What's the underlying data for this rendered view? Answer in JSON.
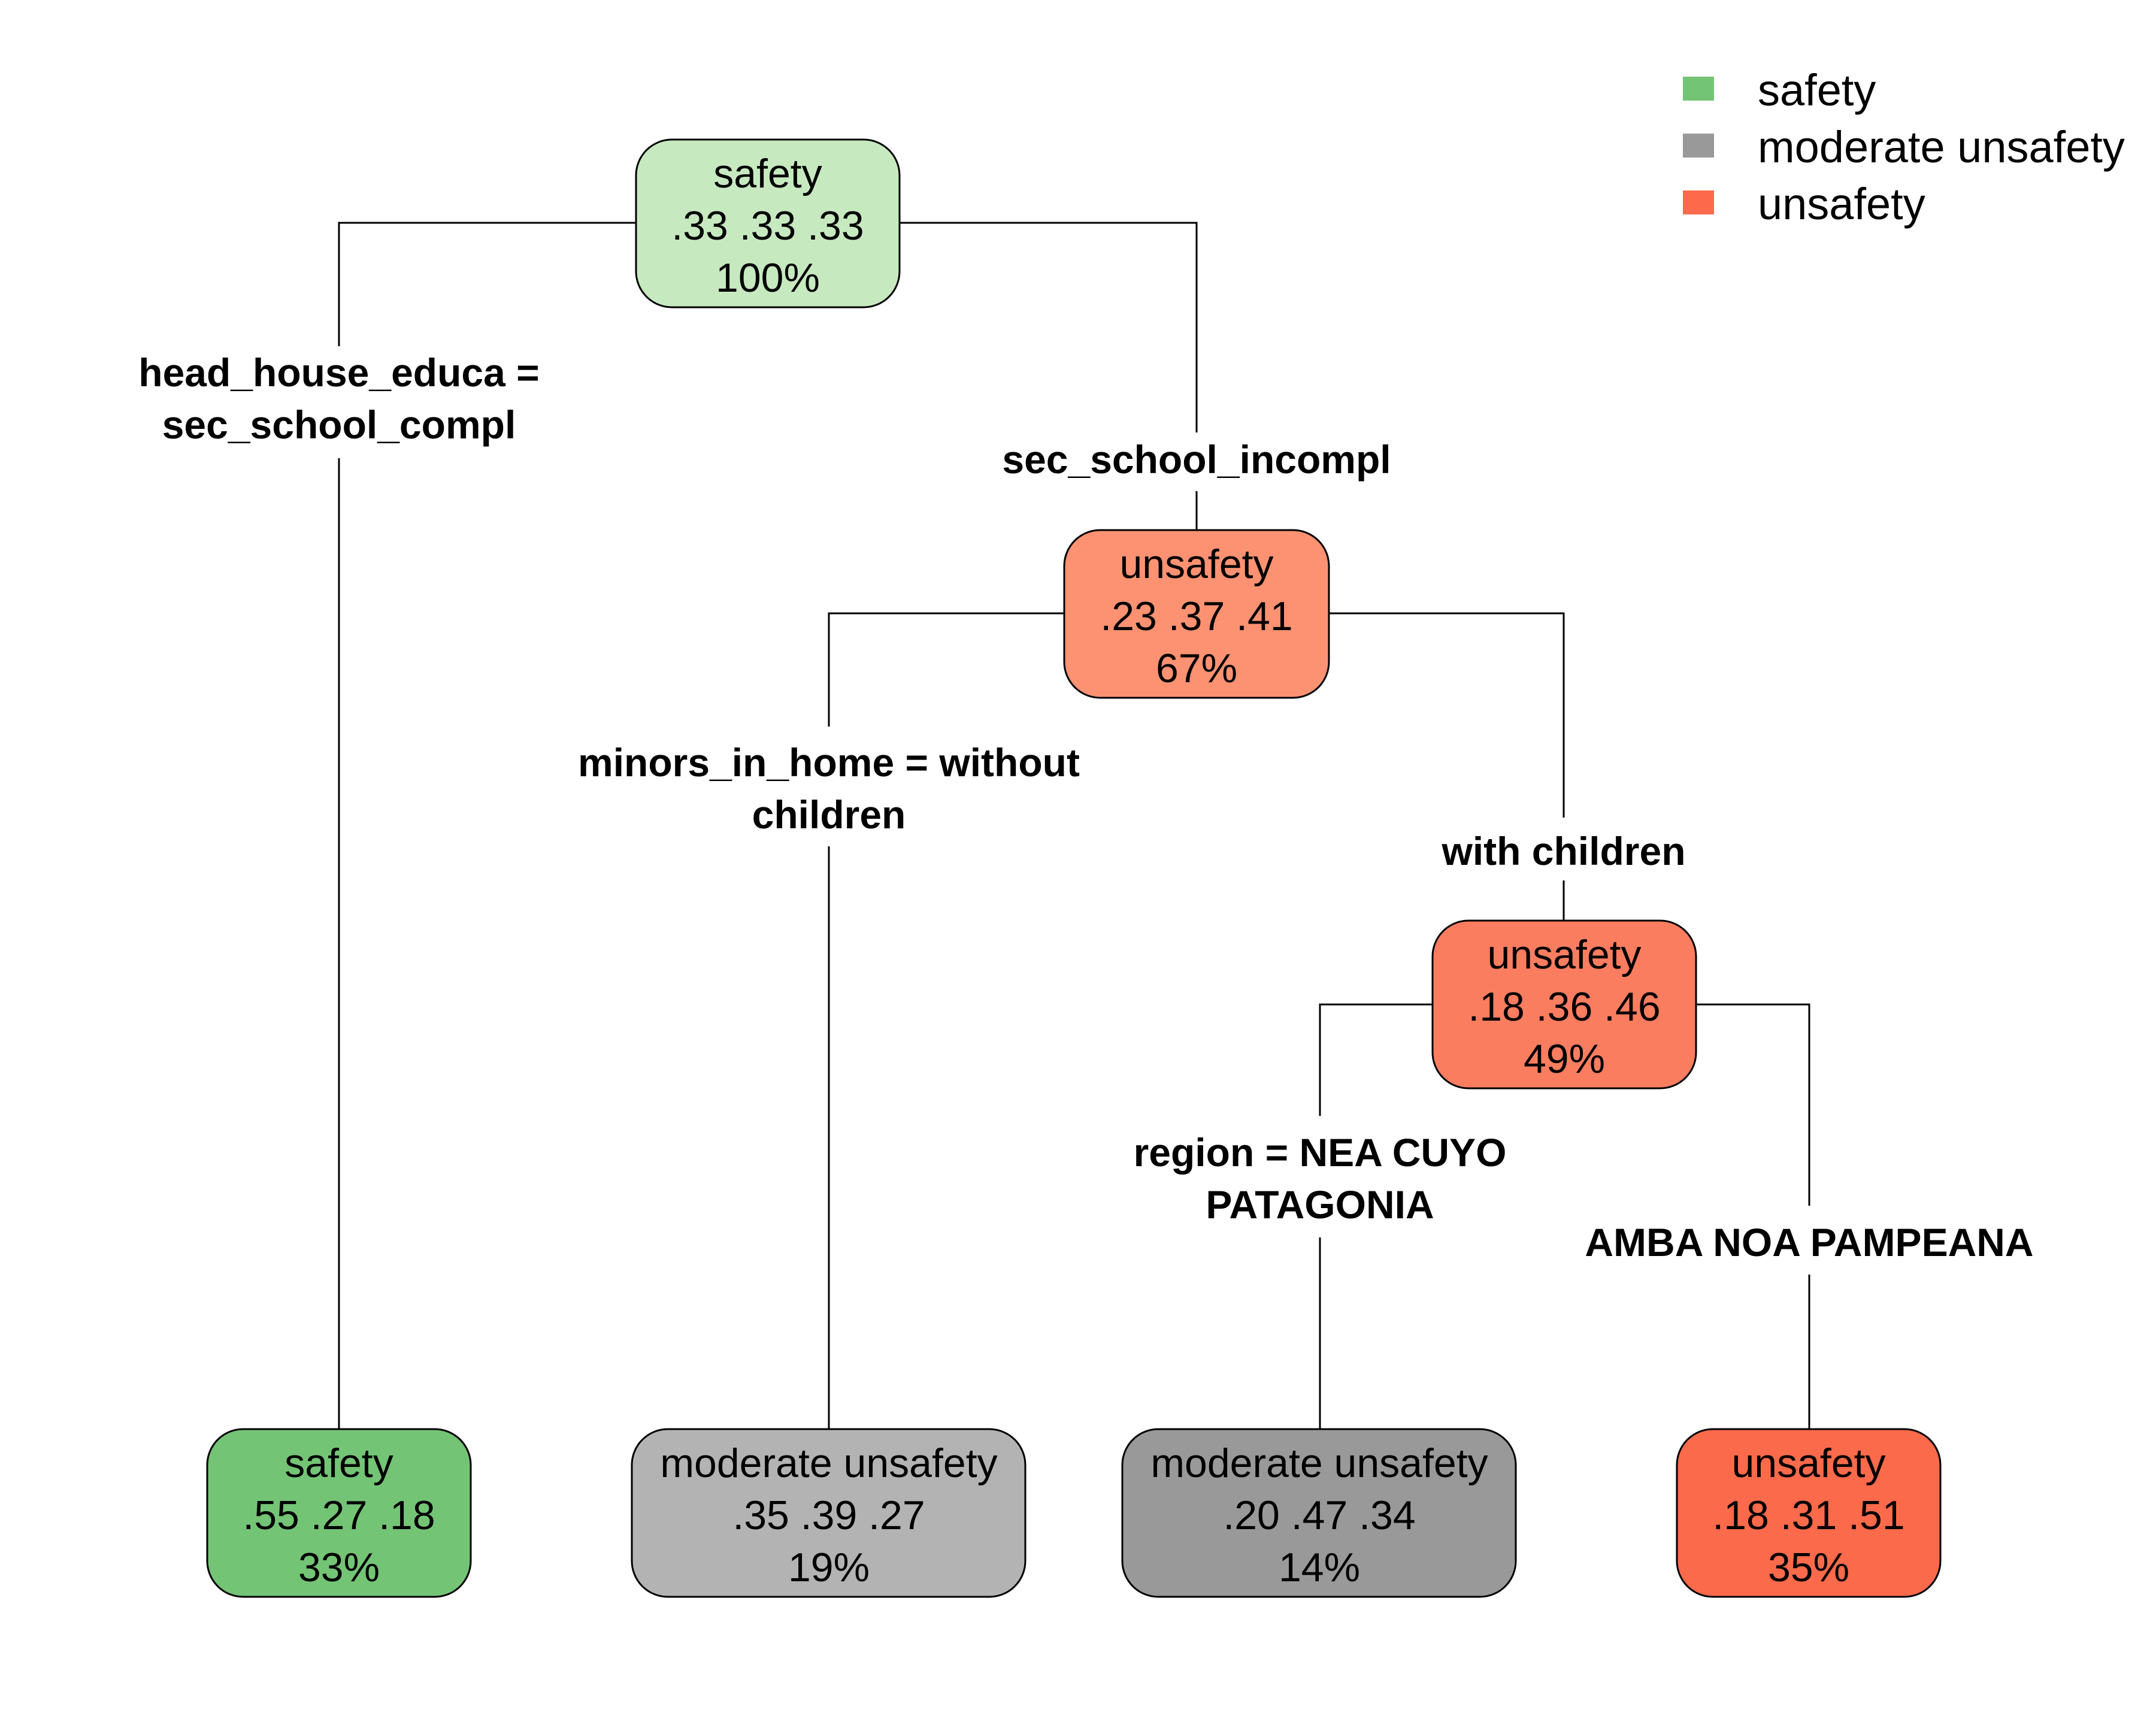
{
  "legend": {
    "items": [
      {
        "label": "safety",
        "color": "#74C476"
      },
      {
        "label": "moderate unsafety",
        "color": "#999999"
      },
      {
        "label": "unsafety",
        "color": "#FC6A4B"
      }
    ]
  },
  "nodes": {
    "root": {
      "class": "safety",
      "probs": ".33  .33  .33",
      "pct": "100%",
      "fill": "#C7E9C0"
    },
    "n2": {
      "class": "unsafety",
      "probs": ".23  .37  .41",
      "pct": "67%",
      "fill": "#FC9272"
    },
    "n3": {
      "class": "unsafety",
      "probs": ".18  .36  .46",
      "pct": "49%",
      "fill": "#FB7D60"
    },
    "leaf1": {
      "class": "safety",
      "probs": ".55  .27  .18",
      "pct": "33%",
      "fill": "#74C476"
    },
    "leaf2": {
      "class": "moderate unsafety",
      "probs": ".35  .39  .27",
      "pct": "19%",
      "fill": "#B3B3B3"
    },
    "leaf3": {
      "class": "moderate unsafety",
      "probs": ".20  .47  .34",
      "pct": "14%",
      "fill": "#999999"
    },
    "leaf4": {
      "class": "unsafety",
      "probs": ".18  .31  .51",
      "pct": "35%",
      "fill": "#FB6A4A"
    }
  },
  "splits": {
    "root_left": {
      "line1": "head_house_educa =",
      "line2": "sec_school_compl"
    },
    "root_right": {
      "line1": "sec_school_incompl"
    },
    "n2_left": {
      "line1": "minors_in_home = without",
      "line2": "children"
    },
    "n2_right": {
      "line1": "with children"
    },
    "n3_left": {
      "line1": "region = NEA CUYO",
      "line2": "PATAGONIA"
    },
    "n3_right": {
      "line1": "AMBA NOA PAMPEANA"
    }
  }
}
